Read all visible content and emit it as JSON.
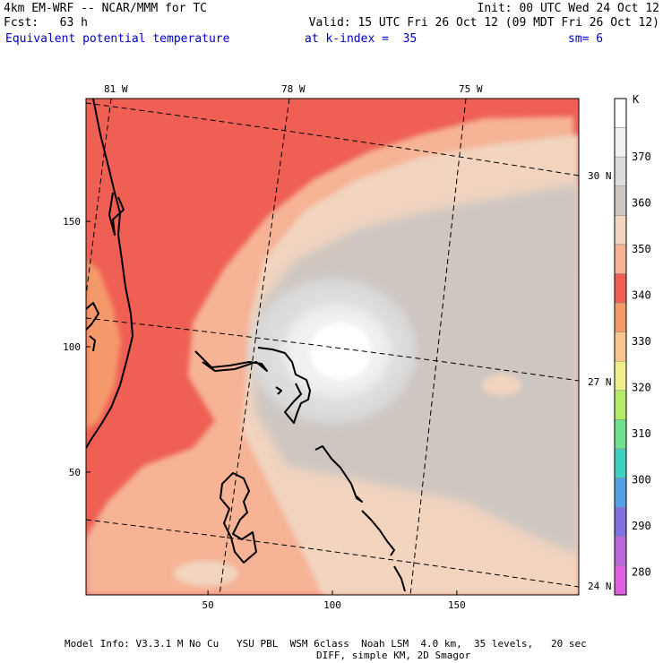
{
  "header": {
    "model_title": "4km EM-WRF -- NCAR/MMM for TC",
    "init": "Init: 00 UTC Wed 24 Oct 12",
    "fcst": "Fcst:   63 h",
    "valid": "Valid: 15 UTC Fri 26 Oct 12 (09 MDT Fri 26 Oct 12)",
    "field": "Equivalent potential temperature",
    "level": "at k-index =  35",
    "smoothing": "sm= 6"
  },
  "map": {
    "lon_labels": [
      "81 W",
      "78 W",
      "75 W"
    ],
    "lat_labels": [
      "30 N",
      "27 N",
      "24 N"
    ],
    "x_ticks": [
      "50",
      "100",
      "150"
    ],
    "y_ticks": [
      "50",
      "100",
      "150"
    ],
    "x_range": [
      1,
      199
    ],
    "y_range": [
      1,
      199
    ]
  },
  "colorbar": {
    "units": "K",
    "labels": [
      "370",
      "360",
      "350",
      "340",
      "330",
      "320",
      "310",
      "300",
      "290",
      "280"
    ],
    "colors": [
      "#ffffff",
      "#f0f0f0",
      "#dcdcdc",
      "#cdc6c1",
      "#f2d4bf",
      "#f6b396",
      "#ef5f54",
      "#f49a6a",
      "#f8c58e",
      "#f0f08a",
      "#b4ec6a",
      "#6ee08e",
      "#3cd2c0",
      "#58a0e6",
      "#8070e0",
      "#b868d8",
      "#e060e0"
    ]
  },
  "footer": {
    "line1": "Model Info: V3.3.1 M No Cu   YSU PBL  WSM 6class  Noah LSM  4.0 km,  35 levels,   20 sec",
    "line2": "DIFF, simple KM, 2D Smagor"
  }
}
